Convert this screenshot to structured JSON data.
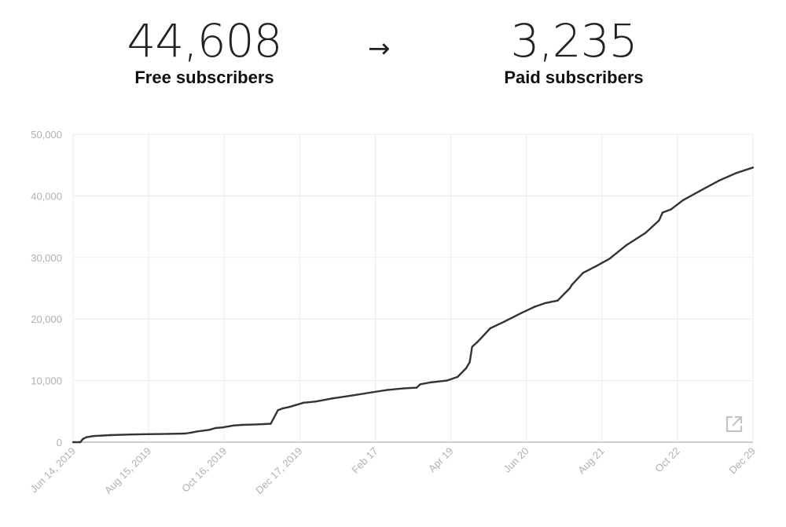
{
  "stats": {
    "free_count": "44,608",
    "free_label": "Free subscribers",
    "arrow": "→",
    "paid_count": "3,235",
    "paid_label": "Paid subscribers"
  },
  "icons": {
    "expand": "external-link-icon"
  },
  "colors": {
    "line": "#333333",
    "grid": "#ebebeb",
    "axis_text": "#b0b0b0"
  },
  "chart_data": {
    "type": "line",
    "title": "",
    "xlabel": "",
    "ylabel": "",
    "ylim": [
      0,
      50000
    ],
    "y_ticks": [
      "0",
      "10,000",
      "20,000",
      "30,000",
      "40,000",
      "50,000"
    ],
    "x_ticks": [
      "Jun 14, 2019",
      "Aug 15, 2019",
      "Oct 16, 2019",
      "Dec 17, 2019",
      "Feb 17",
      "Apr 19",
      "Jun 20",
      "Aug 21",
      "Oct 22",
      "Dec 29"
    ],
    "grid": true,
    "series": [
      {
        "x": [
          "2019-06-14",
          "2019-06-20",
          "2019-06-22",
          "2019-06-25",
          "2019-07-01",
          "2019-07-15",
          "2019-08-01",
          "2019-08-15",
          "2019-09-01",
          "2019-09-15",
          "2019-09-20",
          "2019-09-25",
          "2019-10-05",
          "2019-10-10",
          "2019-10-16",
          "2019-10-25",
          "2019-11-01",
          "2019-11-15",
          "2019-11-25",
          "2019-11-29",
          "2019-12-01",
          "2019-12-05",
          "2019-12-10",
          "2019-12-17",
          "2019-12-22",
          "2020-01-01",
          "2020-01-15",
          "2020-02-01",
          "2020-02-17",
          "2020-03-01",
          "2020-03-15",
          "2020-03-25",
          "2020-03-28",
          "2020-04-05",
          "2020-04-19",
          "2020-04-28",
          "2020-05-05",
          "2020-05-08",
          "2020-05-10",
          "2020-05-14",
          "2020-05-17",
          "2020-05-25",
          "2020-06-05",
          "2020-06-20",
          "2020-07-01",
          "2020-07-10",
          "2020-07-20",
          "2020-07-30",
          "2020-08-01",
          "2020-08-10",
          "2020-08-21",
          "2020-09-01",
          "2020-09-15",
          "2020-10-01",
          "2020-10-12",
          "2020-10-15",
          "2020-10-22",
          "2020-11-01",
          "2020-11-15",
          "2020-12-01",
          "2020-12-15",
          "2020-12-29"
        ],
        "values": [
          0,
          0,
          500,
          800,
          1000,
          1150,
          1250,
          1300,
          1350,
          1400,
          1550,
          1750,
          2000,
          2300,
          2400,
          2700,
          2800,
          2900,
          3000,
          4500,
          5200,
          5500,
          5700,
          6100,
          6400,
          6600,
          7100,
          7600,
          8100,
          8500,
          8750,
          8850,
          9400,
          9700,
          10000,
          10600,
          12000,
          13000,
          15500,
          16200,
          16800,
          18500,
          19500,
          21000,
          22000,
          22600,
          23000,
          25000,
          25600,
          27500,
          28600,
          29800,
          32000,
          34000,
          36000,
          37300,
          37800,
          39300,
          40800,
          42500,
          43700,
          44600
        ]
      }
    ]
  }
}
